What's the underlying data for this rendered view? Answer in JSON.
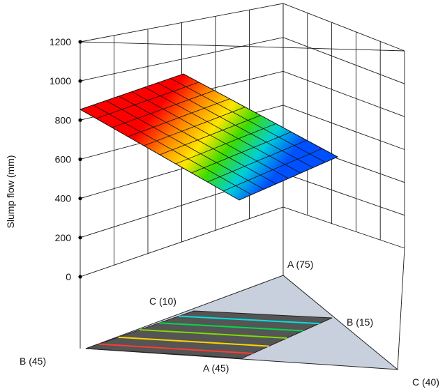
{
  "chart_data": {
    "type": "surface3d",
    "title": "",
    "zlabel": "Slump flow (mm)",
    "zlim": [
      0,
      1200
    ],
    "zticks": [
      "0",
      "200",
      "400",
      "600",
      "800",
      "1000",
      "1200"
    ],
    "vertices": {
      "front": "B (45)",
      "back": "A (75)",
      "right": "C (40)",
      "mid_back": "C (10)",
      "mid_right": "B (15)",
      "mid_front": "A (45)"
    },
    "colors": {
      "floor_triangle": "#c8cfdd",
      "design_region": "#555555",
      "high": "#ff0000",
      "low": "#0050ff",
      "contours": [
        "#ff3b30",
        "#ffd400",
        "#7cdc00",
        "#00d84a",
        "#00e0e0"
      ]
    },
    "grid": true
  }
}
